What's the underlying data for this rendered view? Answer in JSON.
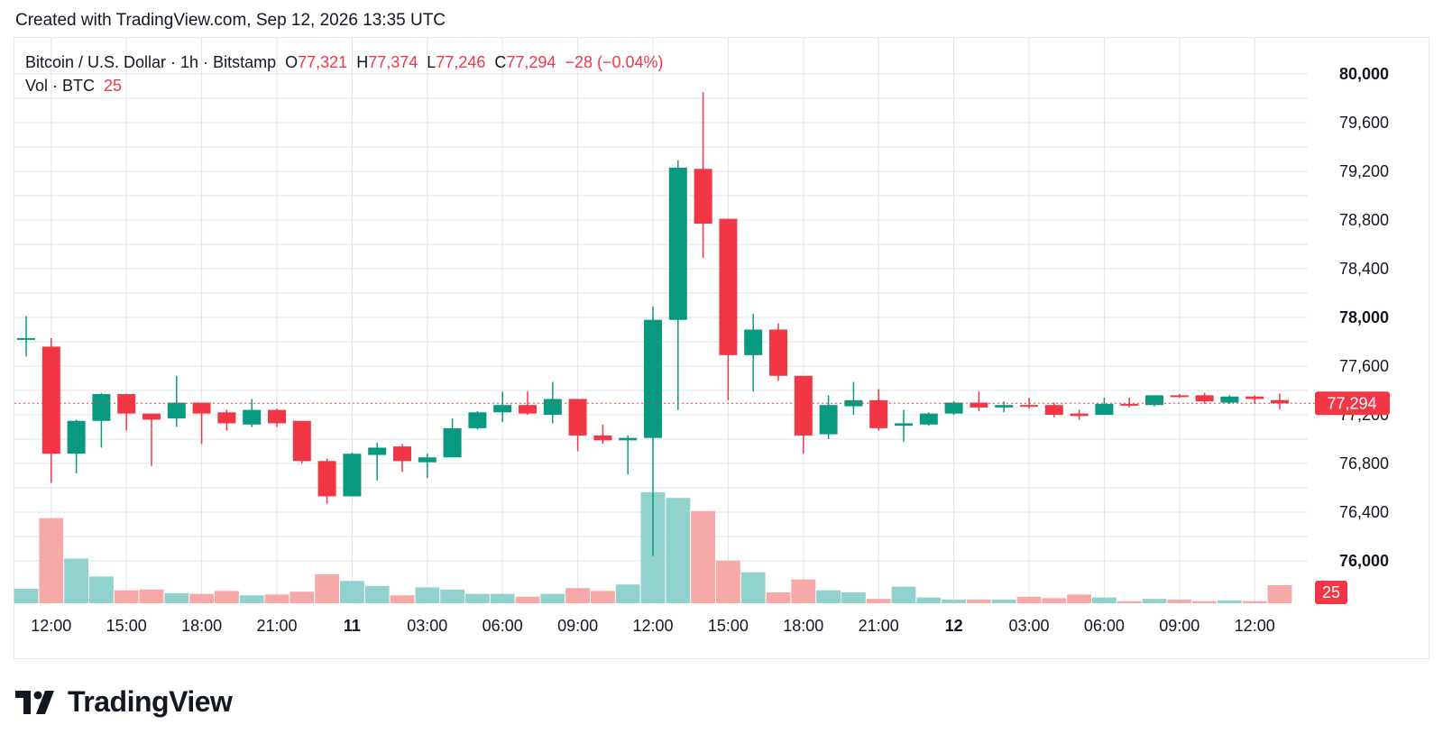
{
  "header": {
    "created_text": "Created with TradingView.com, Sep 12, 2026 13:35 UTC"
  },
  "legend": {
    "symbol": "Bitcoin / U.S. Dollar · 1h · Bitstamp",
    "open_label": "O",
    "open": "77,321",
    "high_label": "H",
    "high": "77,374",
    "low_label": "L",
    "low": "77,246",
    "close_label": "C",
    "close": "77,294",
    "change": "−28 (−0.04%)",
    "vol_label": "Vol · BTC",
    "vol_value": "25"
  },
  "brand": {
    "name": "TradingView"
  },
  "colors": {
    "up": "#089981",
    "down": "#f23645",
    "up_volume": "#92d2cc",
    "down_volume": "#f7a9a7",
    "grid": "#e0e3eb",
    "price_line": "#f23645"
  },
  "chart_data": {
    "type": "candlestick",
    "symbol": "Bitcoin / U.S. Dollar",
    "interval": "1h",
    "exchange": "Bitstamp",
    "x_tick_labels": [
      "12:00",
      "15:00",
      "18:00",
      "21:00",
      "11",
      "03:00",
      "06:00",
      "09:00",
      "12:00",
      "15:00",
      "18:00",
      "21:00",
      "12",
      "03:00",
      "06:00",
      "09:00",
      "12:00"
    ],
    "x_tick_bar_index": [
      1,
      4,
      7,
      10,
      13,
      16,
      19,
      22,
      25,
      28,
      31,
      34,
      37,
      40,
      43,
      46,
      49
    ],
    "y_ticks": [
      "80,000",
      "79,600",
      "79,200",
      "78,800",
      "78,400",
      "78,000",
      "77,600",
      "77,200",
      "76,800",
      "76,400",
      "76,000"
    ],
    "ylim": [
      75900,
      80200
    ],
    "last_price_label": "77,294",
    "last_volume_label": "25",
    "grid": true,
    "candles": [
      {
        "o": 77830,
        "h": 78010,
        "l": 77680,
        "c": 77830,
        "v": 20
      },
      {
        "o": 77760,
        "h": 77830,
        "l": 76640,
        "c": 76880,
        "v": 118
      },
      {
        "o": 76880,
        "h": 77160,
        "l": 76720,
        "c": 77150,
        "v": 62
      },
      {
        "o": 77150,
        "h": 77380,
        "l": 76930,
        "c": 77370,
        "v": 37
      },
      {
        "o": 77370,
        "h": 77370,
        "l": 77070,
        "c": 77210,
        "v": 18
      },
      {
        "o": 77210,
        "h": 77210,
        "l": 76780,
        "c": 77160,
        "v": 19
      },
      {
        "o": 77170,
        "h": 77520,
        "l": 77100,
        "c": 77300,
        "v": 14
      },
      {
        "o": 77300,
        "h": 77300,
        "l": 76960,
        "c": 77210,
        "v": 13
      },
      {
        "o": 77220,
        "h": 77240,
        "l": 77070,
        "c": 77130,
        "v": 17
      },
      {
        "o": 77120,
        "h": 77330,
        "l": 77100,
        "c": 77240,
        "v": 11
      },
      {
        "o": 77240,
        "h": 77250,
        "l": 77100,
        "c": 77130,
        "v": 12
      },
      {
        "o": 77150,
        "h": 77150,
        "l": 76800,
        "c": 76820,
        "v": 16
      },
      {
        "o": 76820,
        "h": 76840,
        "l": 76470,
        "c": 76530,
        "v": 40
      },
      {
        "o": 76530,
        "h": 76890,
        "l": 76530,
        "c": 76880,
        "v": 31
      },
      {
        "o": 76870,
        "h": 76970,
        "l": 76660,
        "c": 76930,
        "v": 24
      },
      {
        "o": 76940,
        "h": 76960,
        "l": 76730,
        "c": 76820,
        "v": 11
      },
      {
        "o": 76810,
        "h": 76880,
        "l": 76680,
        "c": 76850,
        "v": 22
      },
      {
        "o": 76850,
        "h": 77170,
        "l": 76850,
        "c": 77090,
        "v": 19
      },
      {
        "o": 77090,
        "h": 77230,
        "l": 77080,
        "c": 77220,
        "v": 13
      },
      {
        "o": 77220,
        "h": 77390,
        "l": 77140,
        "c": 77280,
        "v": 13
      },
      {
        "o": 77280,
        "h": 77390,
        "l": 77200,
        "c": 77210,
        "v": 9
      },
      {
        "o": 77200,
        "h": 77470,
        "l": 77130,
        "c": 77330,
        "v": 13
      },
      {
        "o": 77330,
        "h": 77330,
        "l": 76900,
        "c": 77030,
        "v": 21
      },
      {
        "o": 77030,
        "h": 77120,
        "l": 76960,
        "c": 76990,
        "v": 17
      },
      {
        "o": 76990,
        "h": 77030,
        "l": 76710,
        "c": 77010,
        "v": 26
      },
      {
        "o": 77010,
        "h": 78090,
        "l": 76040,
        "c": 77980,
        "v": 154
      },
      {
        "o": 77980,
        "h": 79290,
        "l": 77240,
        "c": 79230,
        "v": 146
      },
      {
        "o": 79220,
        "h": 79850,
        "l": 78490,
        "c": 78770,
        "v": 128
      },
      {
        "o": 78810,
        "h": 78810,
        "l": 77320,
        "c": 77690,
        "v": 59
      },
      {
        "o": 77690,
        "h": 78030,
        "l": 77390,
        "c": 77900,
        "v": 43
      },
      {
        "o": 77900,
        "h": 77950,
        "l": 77480,
        "c": 77520,
        "v": 15
      },
      {
        "o": 77520,
        "h": 77520,
        "l": 76880,
        "c": 77030,
        "v": 33
      },
      {
        "o": 77040,
        "h": 77360,
        "l": 77000,
        "c": 77280,
        "v": 18
      },
      {
        "o": 77270,
        "h": 77470,
        "l": 77200,
        "c": 77320,
        "v": 15
      },
      {
        "o": 77320,
        "h": 77410,
        "l": 77070,
        "c": 77090,
        "v": 6
      },
      {
        "o": 77110,
        "h": 77240,
        "l": 76980,
        "c": 77130,
        "v": 23
      },
      {
        "o": 77120,
        "h": 77220,
        "l": 77110,
        "c": 77210,
        "v": 8
      },
      {
        "o": 77210,
        "h": 77310,
        "l": 77200,
        "c": 77300,
        "v": 5
      },
      {
        "o": 77300,
        "h": 77390,
        "l": 77230,
        "c": 77260,
        "v": 5
      },
      {
        "o": 77260,
        "h": 77310,
        "l": 77220,
        "c": 77280,
        "v": 5
      },
      {
        "o": 77280,
        "h": 77340,
        "l": 77250,
        "c": 77270,
        "v": 9
      },
      {
        "o": 77280,
        "h": 77300,
        "l": 77180,
        "c": 77200,
        "v": 7
      },
      {
        "o": 77210,
        "h": 77240,
        "l": 77160,
        "c": 77190,
        "v": 12
      },
      {
        "o": 77200,
        "h": 77340,
        "l": 77200,
        "c": 77290,
        "v": 8
      },
      {
        "o": 77290,
        "h": 77340,
        "l": 77260,
        "c": 77280,
        "v": 3
      },
      {
        "o": 77280,
        "h": 77360,
        "l": 77270,
        "c": 77360,
        "v": 6
      },
      {
        "o": 77360,
        "h": 77370,
        "l": 77340,
        "c": 77350,
        "v": 5
      },
      {
        "o": 77360,
        "h": 77380,
        "l": 77290,
        "c": 77310,
        "v": 3
      },
      {
        "o": 77300,
        "h": 77360,
        "l": 77290,
        "c": 77350,
        "v": 4
      },
      {
        "o": 77350,
        "h": 77360,
        "l": 77290,
        "c": 77330,
        "v": 3
      },
      {
        "o": 77321,
        "h": 77374,
        "l": 77246,
        "c": 77294,
        "v": 25
      }
    ]
  }
}
